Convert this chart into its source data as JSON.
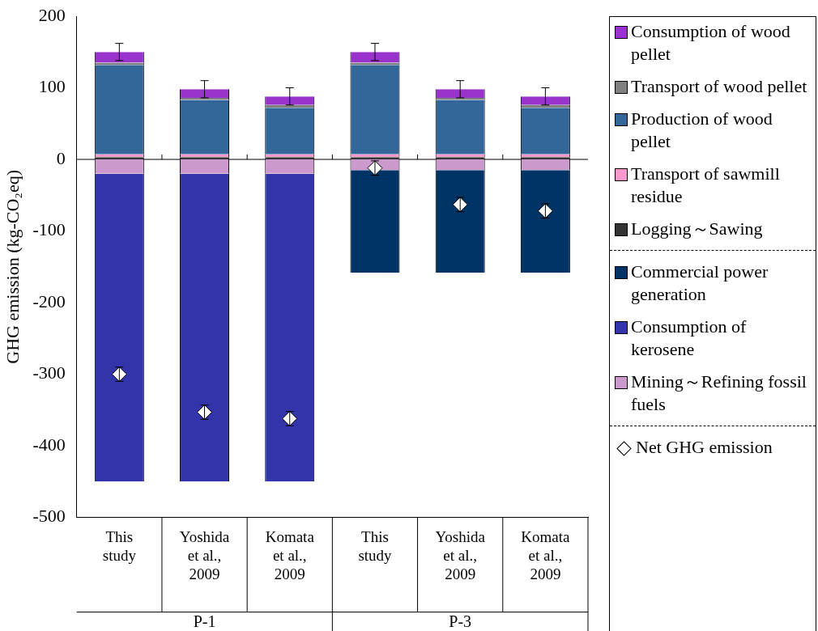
{
  "chart_data": {
    "type": "bar",
    "stacked": true,
    "ylabel": "GHG emission (kg-CO₂eq)",
    "categories": [
      "This study",
      "Yoshida et al., 2009",
      "Komata et al., 2009",
      "This study",
      "Yoshida et al., 2009",
      "Komata et al., 2009"
    ],
    "annotations": [
      "P-1",
      "P-3"
    ],
    "ylim": [
      -500,
      200
    ],
    "yticks": [
      -500,
      -400,
      -300,
      -200,
      -100,
      0,
      100,
      200
    ],
    "grid": false,
    "ref_lines": [
      {
        "axis": "y",
        "value": 0
      }
    ],
    "legend": "right",
    "marker": "diamond",
    "series": [
      {
        "name": "Logging～Sawing",
        "color": "#333333",
        "values": [
          3,
          3,
          3,
          3,
          3,
          3
        ]
      },
      {
        "name": "Transport of sawmill residue",
        "color": "#ff99cc",
        "values": [
          4,
          4,
          4,
          4,
          4,
          4
        ]
      },
      {
        "name": "Production of wood pellet",
        "color": "#336699",
        "values": [
          125,
          76,
          65,
          125,
          76,
          65
        ]
      },
      {
        "name": "Transport of wood pellet",
        "color": "#808080",
        "values": [
          3,
          3,
          4,
          3,
          3,
          4
        ]
      },
      {
        "name": "Consumption of wood pellet",
        "color": "#9933cc",
        "values": [
          15,
          12,
          12,
          15,
          12,
          12
        ],
        "errors": [
          12,
          12,
          12,
          12,
          12,
          12
        ]
      },
      {
        "name": "Mining～Refining fossil fuels",
        "color": "#cc99cc",
        "values": [
          -20,
          -20,
          -20,
          -15,
          -15,
          -15
        ]
      },
      {
        "name": "Consumption of kerosene",
        "color": "#3333aa",
        "values": [
          -430,
          -430,
          -430,
          null,
          null,
          null
        ]
      },
      {
        "name": "Commercial power generation",
        "color": "#003366",
        "values": [
          null,
          null,
          null,
          -143,
          -143,
          -143
        ]
      },
      {
        "name": "Net GHG emission",
        "type": "scatter",
        "color": "#ffffff",
        "values": [
          -300,
          -353,
          -362,
          -12,
          -63,
          -72
        ],
        "errors": [
          10,
          10,
          10,
          10,
          10,
          10
        ]
      }
    ]
  }
}
